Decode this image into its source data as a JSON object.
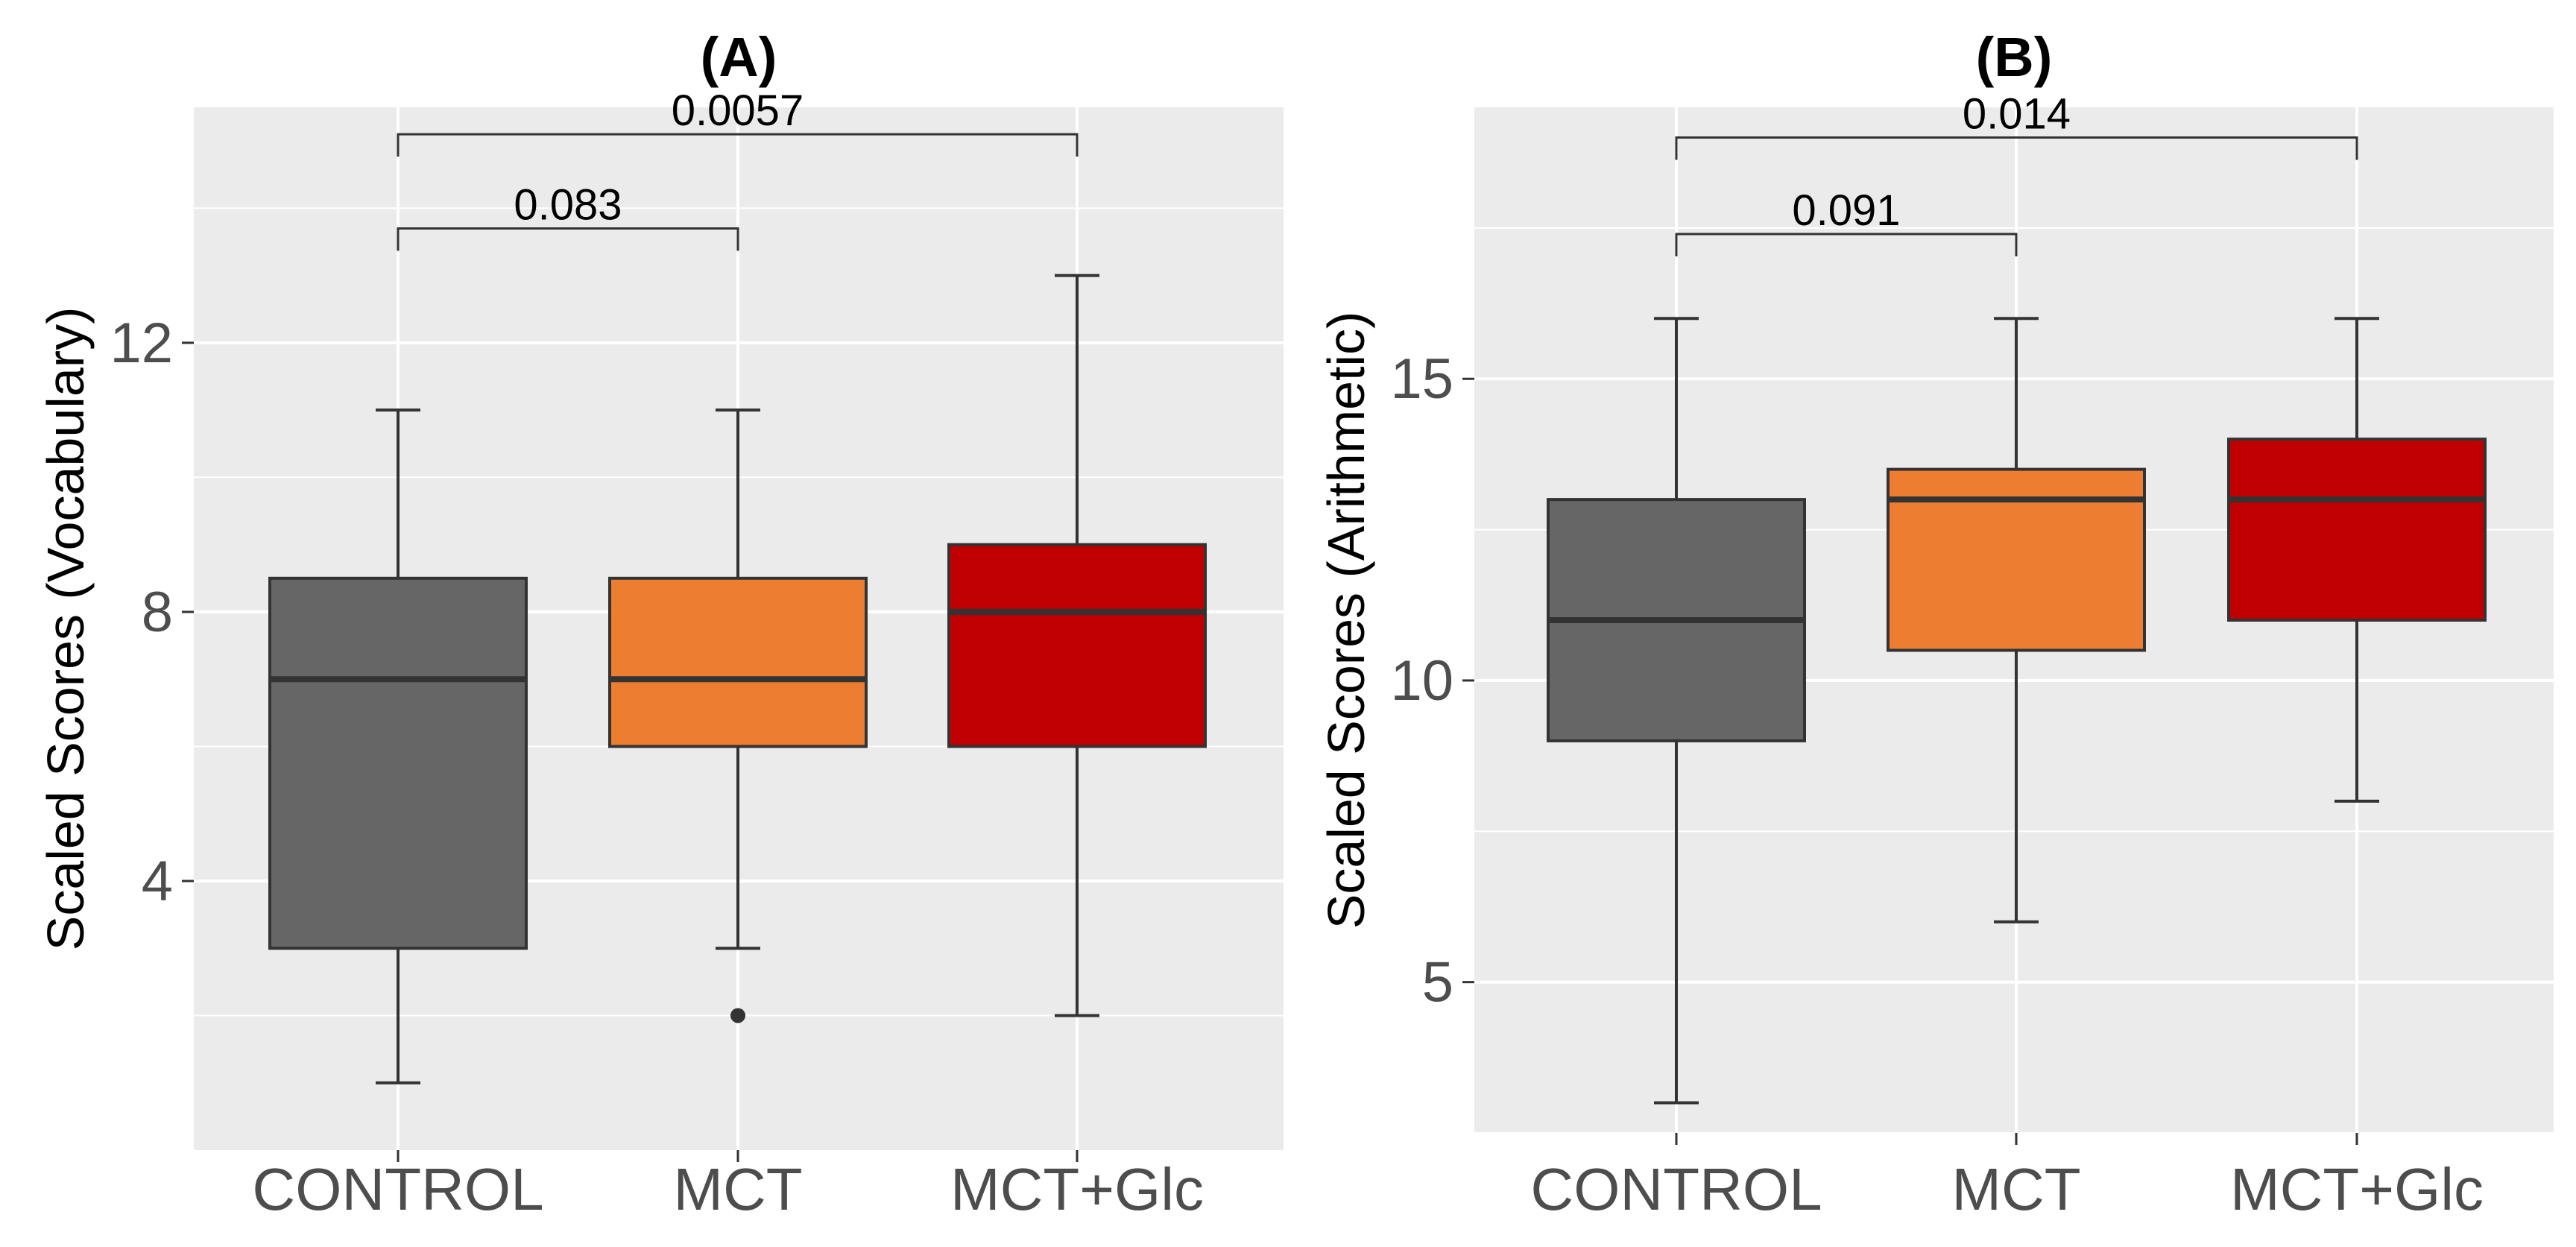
{
  "chart_data": [
    {
      "panel": "A",
      "type": "box",
      "title": "(A)",
      "xlabel": "",
      "ylabel": "Scaled Scores (Vocabulary)",
      "ylim": [
        0,
        15.5
      ],
      "yticks": [
        4,
        8,
        12
      ],
      "grid": true,
      "categories": [
        "CONTROL",
        "MCT",
        "MCT+Glc"
      ],
      "colors": [
        "#666666",
        "#ed7d31",
        "#c00000"
      ],
      "boxes": [
        {
          "group": "CONTROL",
          "min": 1,
          "q1": 3,
          "median": 7,
          "q3": 8.5,
          "max": 11,
          "outliers": []
        },
        {
          "group": "MCT",
          "min": 3,
          "q1": 6,
          "median": 7,
          "q3": 8.5,
          "max": 11,
          "outliers": [
            2
          ]
        },
        {
          "group": "MCT+Glc",
          "min": 2,
          "q1": 6,
          "median": 8,
          "q3": 9,
          "max": 13,
          "outliers": []
        }
      ],
      "comparisons": [
        {
          "from": "CONTROL",
          "to": "MCT",
          "label": "0.083",
          "y": 13.7
        },
        {
          "from": "CONTROL",
          "to": "MCT+Glc",
          "label": "0.0057",
          "y": 15.1
        }
      ]
    },
    {
      "panel": "B",
      "type": "box",
      "title": "(B)",
      "xlabel": "",
      "ylabel": "Scaled Scores (Arithmetic)",
      "ylim": [
        2.5,
        19.5
      ],
      "yticks": [
        5,
        10,
        15
      ],
      "grid": true,
      "categories": [
        "CONTROL",
        "MCT",
        "MCT+Glc"
      ],
      "colors": [
        "#666666",
        "#ed7d31",
        "#c00000"
      ],
      "boxes": [
        {
          "group": "CONTROL",
          "min": 3,
          "q1": 9,
          "median": 11,
          "q3": 13,
          "max": 16,
          "outliers": []
        },
        {
          "group": "MCT",
          "min": 6,
          "q1": 10.5,
          "median": 13,
          "q3": 13.5,
          "max": 16,
          "outliers": []
        },
        {
          "group": "MCT+Glc",
          "min": 8,
          "q1": 11,
          "median": 13,
          "q3": 14,
          "max": 16,
          "outliers": []
        }
      ],
      "comparisons": [
        {
          "from": "CONTROL",
          "to": "MCT",
          "label": "0.091",
          "y": 17.4
        },
        {
          "from": "CONTROL",
          "to": "MCT+Glc",
          "label": "0.014",
          "y": 19
        }
      ]
    }
  ]
}
